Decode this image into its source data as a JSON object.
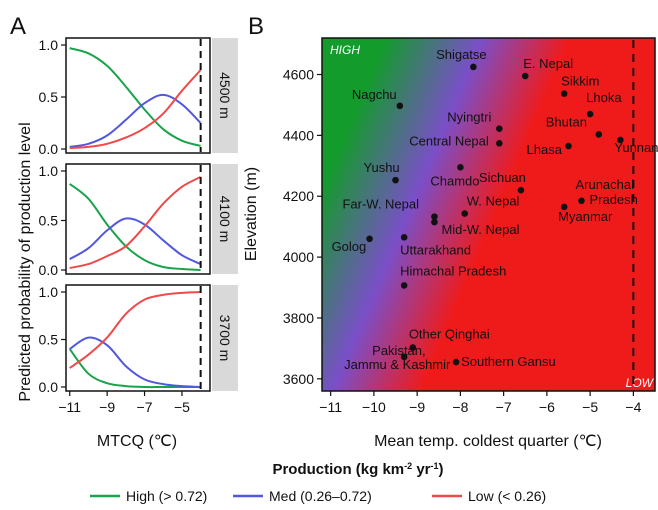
{
  "colors": {
    "high": "#1aa34a",
    "med": "#5157e0",
    "low": "#ef4a4a",
    "strip": "#d9d9d9",
    "grad_green": "#139b2c",
    "grad_purple": "#7a4fc8",
    "grad_red": "#ef1b1b"
  },
  "chart_data": [
    {
      "type": "line",
      "panel_label": "A",
      "ylabel": "Predicted probability of production level",
      "xlabel": "MTCQ (℃)",
      "xlim": [
        -11.2,
        -3.5
      ],
      "ylim": [
        0,
        1
      ],
      "xticks": [
        -11,
        -9,
        -7,
        -5
      ],
      "yticks": [
        0.0,
        0.5,
        1.0
      ],
      "ytick_labels": [
        "0.0",
        "0.5",
        "1.0"
      ],
      "vline_x": -4,
      "facets": [
        {
          "strip_label": "4500 m",
          "x": [
            -11,
            -10,
            -9,
            -8,
            -7,
            -6,
            -5,
            -4
          ],
          "series": [
            {
              "name": "High",
              "values": [
                0.97,
                0.92,
                0.8,
                0.6,
                0.38,
                0.19,
                0.08,
                0.03
              ]
            },
            {
              "name": "Med",
              "values": [
                0.02,
                0.05,
                0.13,
                0.28,
                0.44,
                0.52,
                0.43,
                0.25
              ]
            },
            {
              "name": "Low",
              "values": [
                0.01,
                0.02,
                0.05,
                0.11,
                0.2,
                0.34,
                0.56,
                0.76
              ]
            }
          ]
        },
        {
          "strip_label": "4100 m",
          "x": [
            -11,
            -10,
            -9,
            -8,
            -7,
            -6,
            -5,
            -4
          ],
          "series": [
            {
              "name": "High",
              "values": [
                0.87,
                0.72,
                0.46,
                0.24,
                0.1,
                0.03,
                0.01,
                0.0
              ]
            },
            {
              "name": "Med",
              "values": [
                0.11,
                0.22,
                0.4,
                0.52,
                0.46,
                0.3,
                0.15,
                0.06
              ]
            },
            {
              "name": "Low",
              "values": [
                0.02,
                0.06,
                0.14,
                0.24,
                0.44,
                0.67,
                0.84,
                0.94
              ]
            }
          ]
        },
        {
          "strip_label": "3700 m",
          "x": [
            -11,
            -10,
            -9,
            -8,
            -7,
            -6,
            -5,
            -4
          ],
          "series": [
            {
              "name": "High",
              "values": [
                0.4,
                0.14,
                0.04,
                0.01,
                0.0,
                0.0,
                0.0,
                0.0
              ]
            },
            {
              "name": "Med",
              "values": [
                0.4,
                0.52,
                0.44,
                0.22,
                0.08,
                0.03,
                0.01,
                0.0
              ]
            },
            {
              "name": "Low",
              "values": [
                0.2,
                0.34,
                0.52,
                0.77,
                0.92,
                0.97,
                0.99,
                1.0
              ]
            }
          ]
        }
      ]
    },
    {
      "type": "scatter",
      "panel_label": "B",
      "xlabel": "Mean temp. coldest quarter (℃)",
      "ylabel": "Elevation (m)",
      "xlim": [
        -11.2,
        -3.5
      ],
      "ylim": [
        3560,
        4720
      ],
      "xticks": [
        -11,
        -10,
        -9,
        -8,
        -7,
        -6,
        -5,
        -4
      ],
      "yticks": [
        3600,
        3800,
        4000,
        4200,
        4400,
        4600
      ],
      "vline_x": -4,
      "corner_labels": {
        "top_left": "HIGH",
        "bottom_right": "LOW"
      },
      "points": [
        {
          "label": "Shigatse",
          "x": -7.7,
          "y": 4625
        },
        {
          "label": "E. Nepal",
          "x": -6.5,
          "y": 4595
        },
        {
          "label": "Sikkim",
          "x": -5.6,
          "y": 4537
        },
        {
          "label": "Nagchu",
          "x": -9.4,
          "y": 4497
        },
        {
          "label": "Lhoka",
          "x": -5.0,
          "y": 4470
        },
        {
          "label": "Nyingtri",
          "x": -7.1,
          "y": 4422
        },
        {
          "label": "Bhutan",
          "x": -4.8,
          "y": 4403
        },
        {
          "label": "Central Nepal",
          "x": -7.1,
          "y": 4374
        },
        {
          "label": "Yunnan",
          "x": -4.3,
          "y": 4385
        },
        {
          "label": "Lhasa",
          "x": -5.5,
          "y": 4365
        },
        {
          "label": "Chamdo",
          "x": -8.0,
          "y": 4295
        },
        {
          "label": "Yushu",
          "x": -9.5,
          "y": 4253
        },
        {
          "label": "Sichuan",
          "x": -6.6,
          "y": 4220
        },
        {
          "label": "Arunachal Pradesh",
          "x": -5.2,
          "y": 4185
        },
        {
          "label": "Myanmar",
          "x": -5.6,
          "y": 4165
        },
        {
          "label": "Far-W. Nepal",
          "x": -8.6,
          "y": 4133
        },
        {
          "label": "W. Nepal",
          "x": -7.9,
          "y": 4143
        },
        {
          "label": "Mid-W. Nepal",
          "x": -8.6,
          "y": 4115
        },
        {
          "label": "Golog",
          "x": -10.1,
          "y": 4060
        },
        {
          "label": "Uttarakhand",
          "x": -9.3,
          "y": 4065
        },
        {
          "label": "Himachal Pradesh",
          "x": -9.3,
          "y": 3907
        },
        {
          "label": "Other Qinghai",
          "x": -9.1,
          "y": 3703
        },
        {
          "label": "Pakistan, Jammu & Kashmir",
          "x": -9.3,
          "y": 3672
        },
        {
          "label": "Southern Gansu",
          "x": -8.1,
          "y": 3655
        }
      ]
    }
  ],
  "legend": {
    "title_main": "Production (kg km",
    "title_sup1": "-2",
    "title_mid": " yr",
    "title_sup2": "-1",
    "title_end": ")",
    "items": [
      {
        "label": "High (> 0.72)",
        "color": "#1aa34a"
      },
      {
        "label": "Med (0.26–0.72)",
        "color": "#5157e0"
      },
      {
        "label": "Low (< 0.26)",
        "color": "#ef4a4a"
      }
    ]
  }
}
